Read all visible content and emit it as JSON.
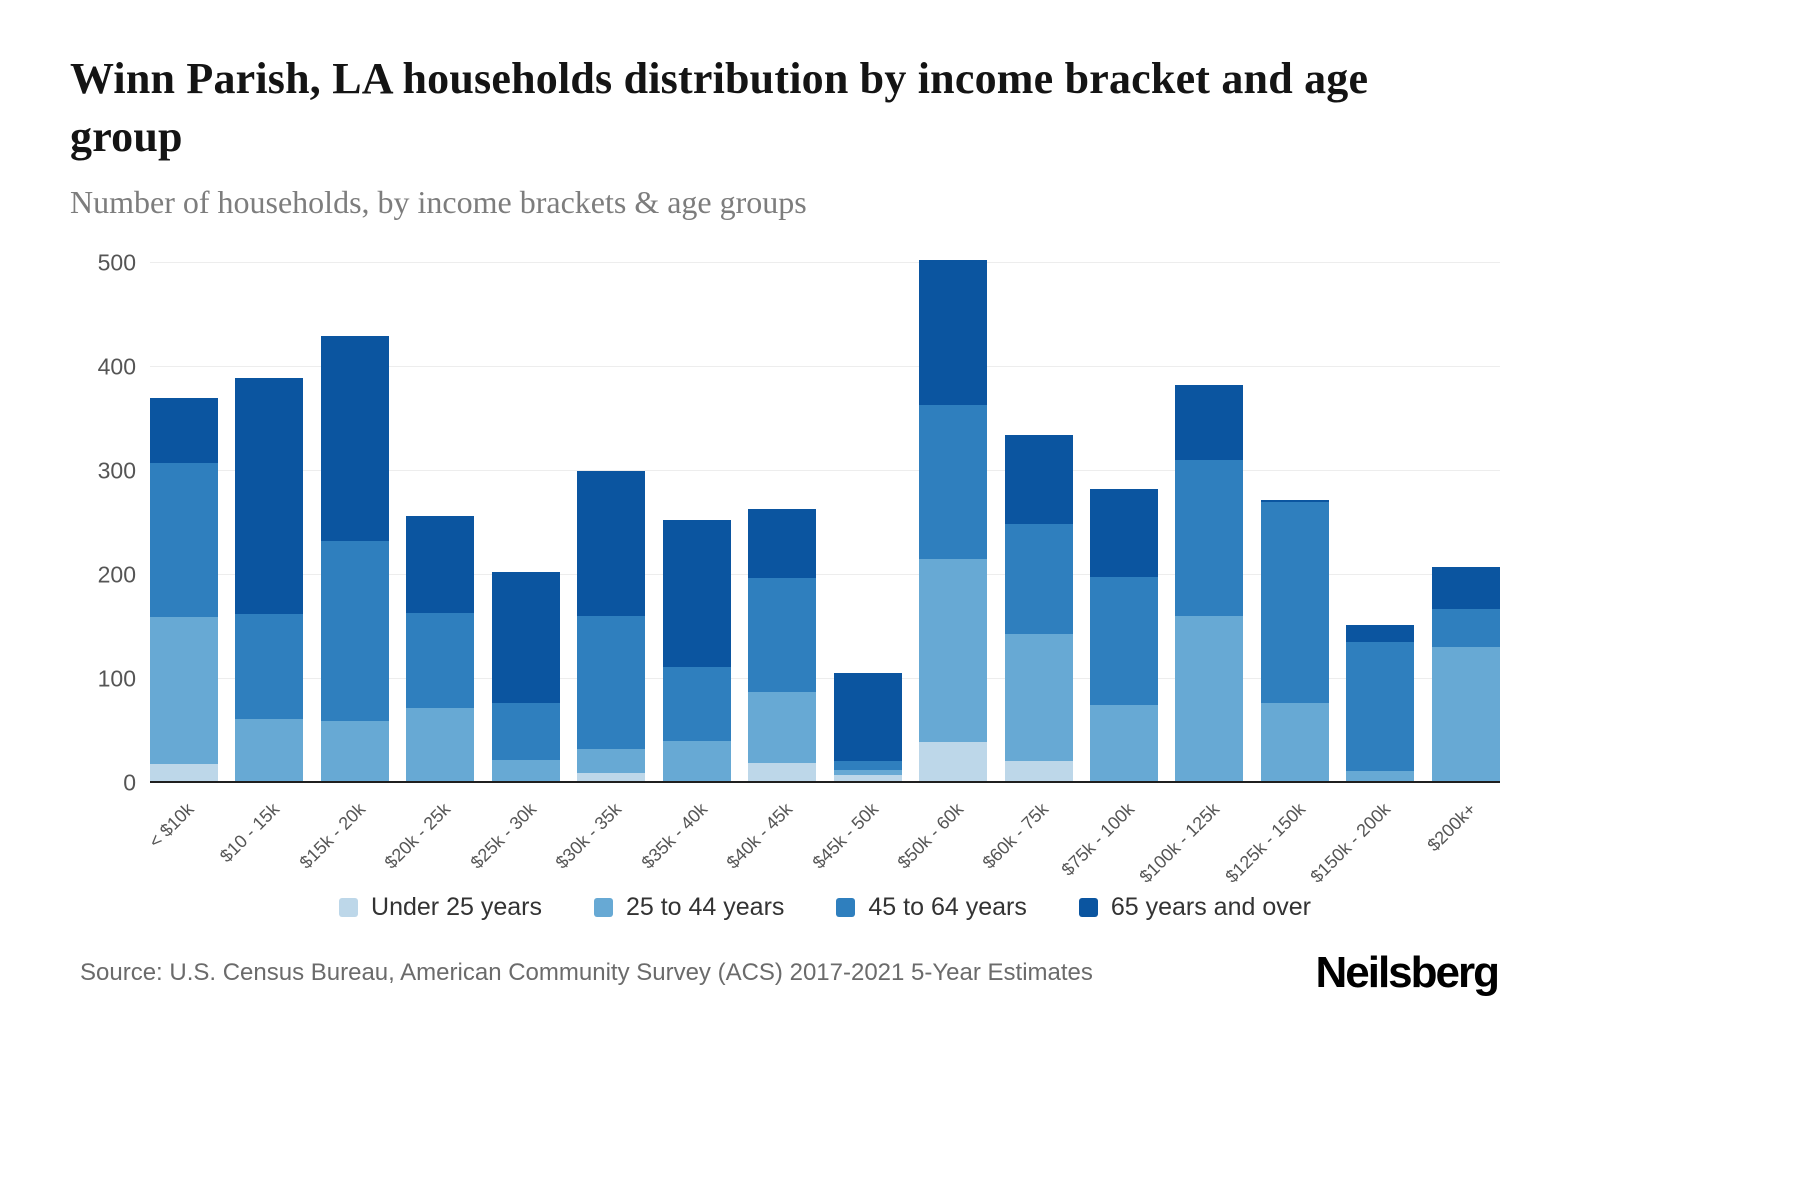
{
  "header": {
    "title": "Winn Parish, LA households distribution by income bracket and age group",
    "subtitle": "Number of households, by income brackets & age groups"
  },
  "chart_data": {
    "type": "bar",
    "stacked": true,
    "title": "Winn Parish, LA households distribution by income bracket and age group",
    "xlabel": "",
    "ylabel": "Number of households",
    "ylim": [
      0,
      500
    ],
    "yticks": [
      0,
      100,
      200,
      300,
      400,
      500
    ],
    "grid": "horizontal",
    "legend_position": "bottom",
    "categories": [
      "< $10k",
      "$10 - 15k",
      "$15k - 20k",
      "$20k - 25k",
      "$25k - 30k",
      "$30k - 35k",
      "$35k - 40k",
      "$40k - 45k",
      "$45k - 50k",
      "$50k - 60k",
      "$60k - 75k",
      "$75k - 100k",
      "$100k - 125k",
      "$125k - 150k",
      "$150k - 200k",
      "$200k+"
    ],
    "series": [
      {
        "name": "Under 25 years",
        "color": "#bdd7e9",
        "values": [
          18,
          0,
          0,
          0,
          0,
          10,
          0,
          19,
          8,
          40,
          21,
          0,
          0,
          0,
          0,
          0
        ]
      },
      {
        "name": "25 to 44 years",
        "color": "#67a9d4",
        "values": [
          142,
          62,
          60,
          72,
          22,
          23,
          41,
          69,
          5,
          176,
          122,
          75,
          161,
          77,
          12,
          131
        ]
      },
      {
        "name": "45 to 64 years",
        "color": "#2f7fbe",
        "values": [
          148,
          101,
          173,
          92,
          55,
          128,
          71,
          109,
          8,
          148,
          106,
          123,
          150,
          193,
          124,
          36
        ]
      },
      {
        "name": "65 years and over",
        "color": "#0b55a0",
        "values": [
          62,
          227,
          197,
          93,
          126,
          139,
          141,
          67,
          85,
          139,
          86,
          85,
          72,
          2,
          16,
          41
        ]
      }
    ]
  },
  "footer": {
    "source": "Source: U.S. Census Bureau, American Community Survey (ACS) 2017-2021 5-Year Estimates",
    "brand": "Neilsberg"
  }
}
